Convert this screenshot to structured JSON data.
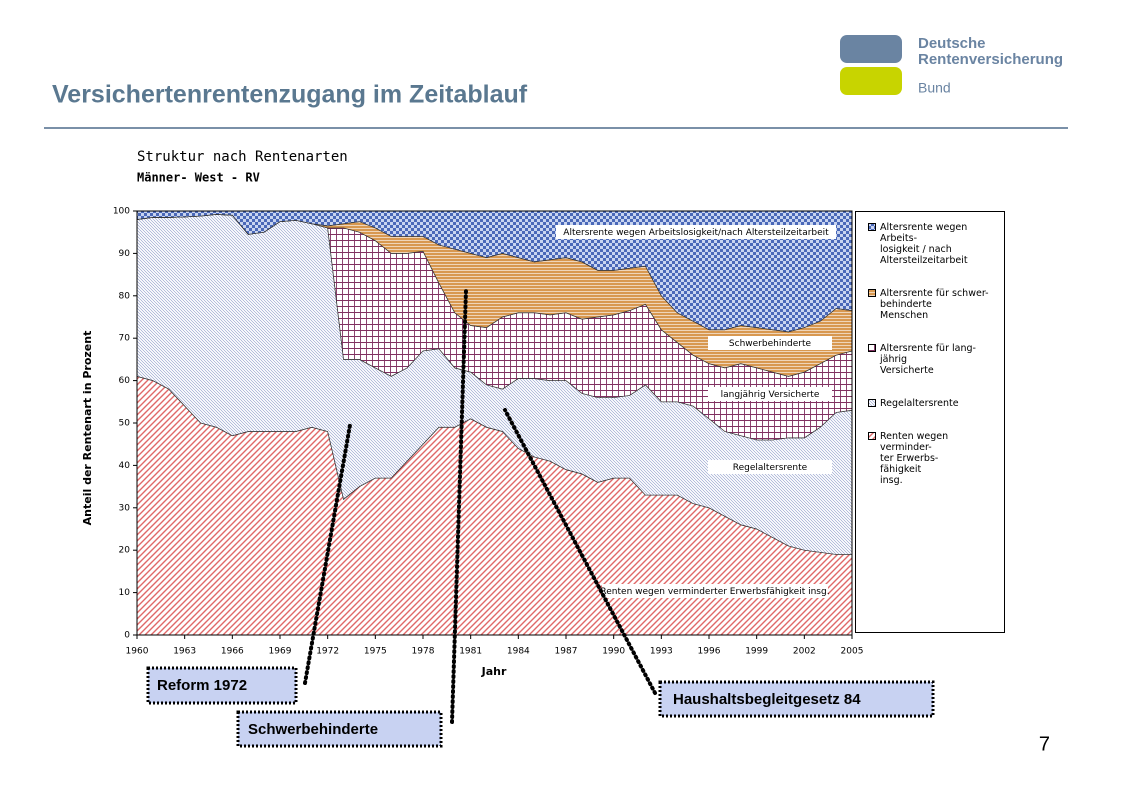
{
  "header": {
    "title": "Versichertenrentenzugang im Zeitablauf",
    "logo": [
      "Deutsche",
      "Rentenversicherung",
      "Bund"
    ]
  },
  "chart_data": {
    "type": "stacked_area",
    "title": "Struktur nach Rentenarten",
    "subtitle": "Männer- West - RV",
    "x_label": "Jahr",
    "y_label": "Anteil der Rentenart in Prozent",
    "x": [
      1960,
      1961,
      1962,
      1963,
      1964,
      1965,
      1966,
      1967,
      1968,
      1969,
      1970,
      1971,
      1972,
      1973,
      1974,
      1975,
      1976,
      1977,
      1978,
      1979,
      1980,
      1981,
      1982,
      1983,
      1984,
      1985,
      1986,
      1987,
      1988,
      1989,
      1990,
      1991,
      1992,
      1993,
      1994,
      1995,
      1996,
      1997,
      1998,
      1999,
      2000,
      2001,
      2002,
      2003,
      2004,
      2005
    ],
    "xlim": [
      1960,
      2005
    ],
    "xticks": [
      1960,
      1963,
      1966,
      1969,
      1972,
      1975,
      1978,
      1981,
      1984,
      1987,
      1990,
      1993,
      1996,
      1999,
      2002,
      2005
    ],
    "ylim": [
      0,
      100
    ],
    "yticks": [
      0,
      10,
      20,
      30,
      40,
      50,
      60,
      70,
      80,
      90,
      100
    ],
    "series": [
      {
        "name": "Renten wegen\nverminder-\nter Erwerbs-\nfähigkeit\ninsg.",
        "color": "#e06868",
        "pattern": "diagonal",
        "values": [
          61,
          60,
          58,
          54,
          50,
          49,
          47,
          48,
          48,
          48,
          48,
          49,
          48,
          32,
          35,
          37,
          37,
          41,
          45,
          49,
          49,
          51,
          49,
          48,
          44,
          42,
          41,
          39,
          38,
          36,
          37,
          37,
          33,
          33,
          33,
          31,
          30,
          28,
          26,
          25,
          23,
          21,
          20,
          19.5,
          19,
          19
        ]
      },
      {
        "name": "Regelaltersrente",
        "color": "#8a98c8",
        "pattern": "fine",
        "values": [
          37,
          38.5,
          40.5,
          44.6,
          48.8,
          50.2,
          52,
          46.5,
          47,
          49.5,
          49.8,
          48,
          48,
          33,
          30,
          26,
          24,
          22,
          22,
          18.5,
          14,
          11,
          10,
          10,
          16.5,
          18.5,
          19,
          21,
          19,
          20,
          19,
          19.5,
          26,
          22,
          22,
          23,
          21,
          20,
          21,
          21,
          23,
          25.5,
          26.5,
          29.5,
          33.5,
          34
        ]
      },
      {
        "name": "Altersrente für lang-\njährig\nVersicherte",
        "color": "#803060",
        "pattern": "grid",
        "values": [
          0,
          0,
          0,
          0,
          0,
          0,
          0,
          0,
          0,
          0,
          0,
          0,
          0,
          31,
          30,
          30,
          29,
          27,
          23.5,
          15.5,
          13,
          11,
          13.5,
          17,
          15.5,
          15.5,
          15.5,
          16,
          17.5,
          19,
          19.5,
          20,
          19,
          17,
          14,
          12,
          13,
          15,
          17,
          17,
          16,
          14.5,
          15.5,
          15,
          13.5,
          14
        ]
      },
      {
        "name": "Altersrente für schwer-\nbehinderte\nMenschen",
        "color": "#d89850",
        "pattern": "horizontal",
        "values": [
          0,
          0,
          0,
          0,
          0,
          0,
          0,
          0,
          0,
          0,
          0,
          0,
          0.5,
          1,
          2.5,
          3,
          4,
          4,
          3.5,
          9,
          15,
          17,
          16.5,
          15,
          13,
          12,
          13,
          13,
          13.5,
          11,
          10.5,
          10,
          9,
          8,
          7,
          8,
          8,
          9,
          9,
          9.5,
          10,
          10.5,
          10.5,
          10,
          11,
          9.5
        ]
      },
      {
        "name": "Altersrente wegen\nArbeits-\nlosigkeit / nach\nAltersteilzeitarbeit",
        "color": "#4a68b8",
        "pattern": "check",
        "values": [
          2,
          1.5,
          1.5,
          1.4,
          1.2,
          0.8,
          1,
          5.5,
          5,
          2.5,
          2.2,
          3,
          3.5,
          3,
          2.5,
          4,
          6,
          6,
          6,
          8,
          9,
          10,
          11,
          10,
          11,
          12,
          11.5,
          11,
          12,
          14,
          14,
          13.5,
          13,
          20,
          24,
          26,
          28,
          28,
          27,
          27.5,
          28,
          28.5,
          27.5,
          26,
          23,
          23.5
        ]
      }
    ],
    "legend": "right",
    "annotations": [
      "Renten wegen verminderter Erwerbsfähigkeit insg.",
      "Regelaltersrente",
      "langjährig Versicherte",
      "Schwerbehinderte",
      "Altersrente wegen Arbeitslosigkeit/nach Altersteilzeitarbeit"
    ]
  },
  "callouts": [
    "Reform 1972",
    "Schwerbehinderte",
    "Haushaltsbegleitgesetz 84"
  ],
  "page_number": 7
}
